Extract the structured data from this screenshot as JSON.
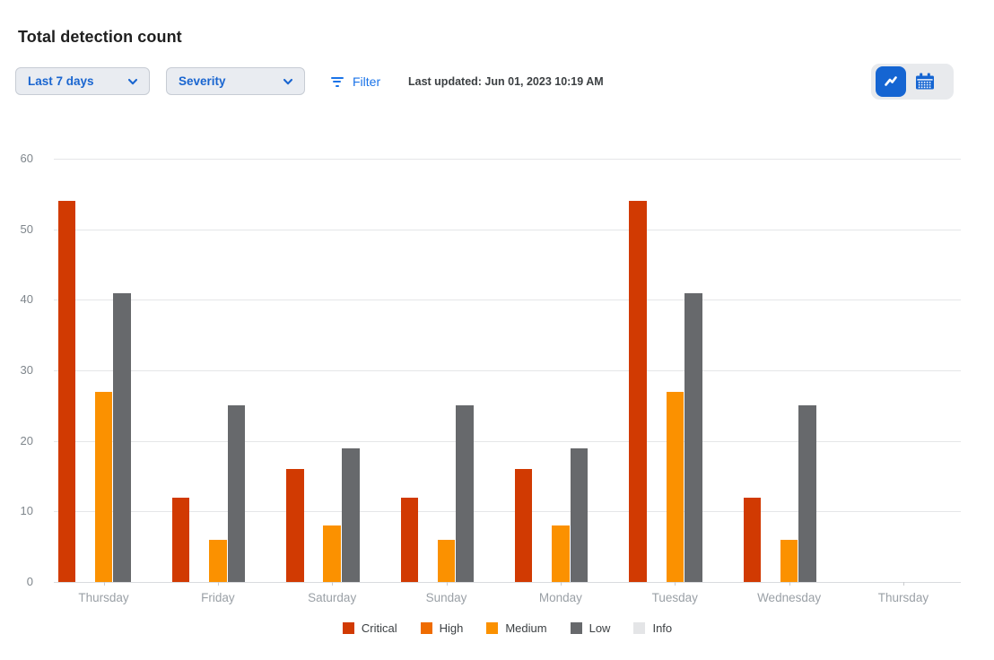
{
  "header": {
    "title": "Total detection count"
  },
  "toolbar": {
    "range_select": {
      "value": "Last 7 days"
    },
    "groupby_select": {
      "value": "Severity"
    },
    "filter_label": "Filter",
    "last_updated": "Last updated: Jun 01, 2023 10:19 AM"
  },
  "view_toggle": {
    "chart_button_icon": "line-chart-icon",
    "calendar_button_icon": "calendar-icon",
    "selected": "chart"
  },
  "icons": {
    "chevron": "chevron-down",
    "filter": "filter-list",
    "chart": "line-chart",
    "calendar": "calendar"
  },
  "colors": {
    "accent_blue": "#1a73e8",
    "select_text_blue": "#1965d0",
    "active_toggle_blue": "#1565d2"
  },
  "chart_data": {
    "type": "bar",
    "title": "Total detection count",
    "categories": [
      "Thursday",
      "Friday",
      "Saturday",
      "Sunday",
      "Monday",
      "Tuesday",
      "Wednesday",
      "Thursday"
    ],
    "series": [
      {
        "name": "Critical",
        "color": "#d13a02",
        "values": [
          54,
          12,
          16,
          12,
          16,
          54,
          12,
          0
        ]
      },
      {
        "name": "High",
        "color": "#ef6c00",
        "values": [
          0,
          0,
          0,
          0,
          0,
          0,
          0,
          0
        ]
      },
      {
        "name": "Medium",
        "color": "#fb9100",
        "values": [
          27,
          6,
          8,
          6,
          8,
          27,
          6,
          0
        ]
      },
      {
        "name": "Low",
        "color": "#67696c",
        "values": [
          41,
          25,
          19,
          25,
          19,
          41,
          25,
          0
        ]
      },
      {
        "name": "Info",
        "color": "#e4e5e7",
        "values": [
          0,
          0,
          0,
          0,
          0,
          0,
          0,
          0
        ]
      }
    ],
    "xlabel": "",
    "ylabel": "",
    "ylim": [
      0,
      60
    ],
    "yticks": [
      0,
      10,
      20,
      30,
      40,
      50,
      60
    ],
    "grid": true,
    "legend_position": "bottom"
  }
}
